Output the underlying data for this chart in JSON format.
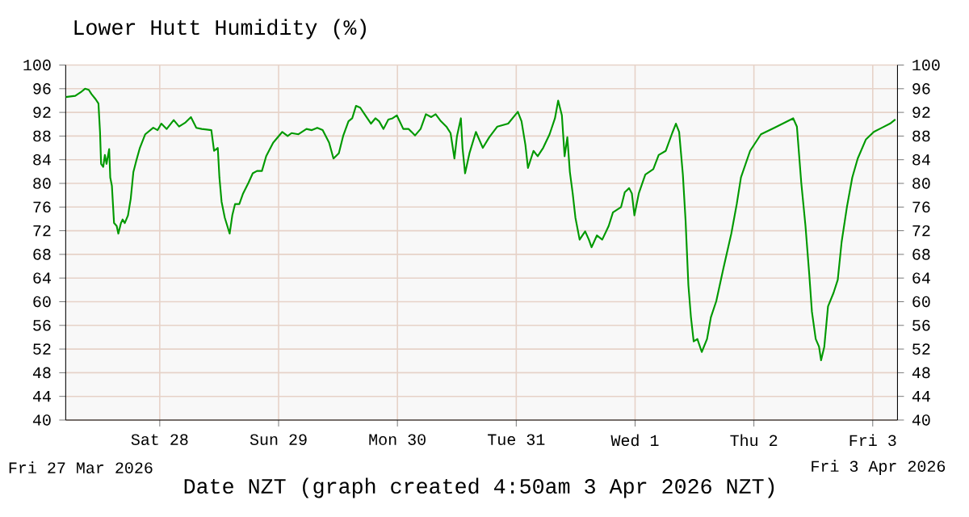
{
  "chart_data": {
    "type": "line",
    "title": "Lower Hutt Humidity (%)",
    "xlabel": "Date NZT (graph created 4:50am 3 Apr 2026 NZT)",
    "annotations": [
      "Fri 27 Mar 2026",
      "Fri 3 Apr 2026"
    ],
    "xlim": [
      "2026-03-27T05:00",
      "2026-04-03T05:00"
    ],
    "xticks": [
      {
        "value": "2026-03-28",
        "label": "Sat 28"
      },
      {
        "value": "2026-03-29",
        "label": "Sun 29"
      },
      {
        "value": "2026-03-30",
        "label": "Mon 30"
      },
      {
        "value": "2026-03-31",
        "label": "Tue 31"
      },
      {
        "value": "2026-04-01",
        "label": "Wed 1"
      },
      {
        "value": "2026-04-02",
        "label": "Thu 2"
      },
      {
        "value": "2026-04-03",
        "label": "Fri 3"
      }
    ],
    "ylim": [
      40,
      100
    ],
    "yticks": [
      40,
      44,
      48,
      52,
      56,
      60,
      64,
      68,
      72,
      76,
      80,
      84,
      88,
      92,
      96,
      100
    ],
    "y2lim": [
      40,
      100
    ],
    "y2ticks": [
      40,
      44,
      48,
      52,
      56,
      60,
      64,
      68,
      72,
      76,
      80,
      84,
      88,
      92,
      96,
      100
    ],
    "grid": true,
    "marker": "none",
    "line_style": "solid",
    "x": [
      "2026-03-27T05:00",
      "2026-03-27T06:56",
      "2026-03-27T08:02",
      "2026-03-27T08:54",
      "2026-03-27T09:40",
      "2026-03-27T10:12",
      "2026-03-27T11:04",
      "2026-03-27T11:37",
      "2026-03-27T11:56",
      "2026-03-27T12:09",
      "2026-03-27T12:35",
      "2026-03-27T12:55",
      "2026-03-27T13:15",
      "2026-03-27T13:47",
      "2026-03-27T14:00",
      "2026-03-27T14:20",
      "2026-03-27T14:46",
      "2026-03-27T15:18",
      "2026-03-27T15:38",
      "2026-03-27T16:10",
      "2026-03-27T16:30",
      "2026-03-27T16:56",
      "2026-03-27T17:35",
      "2026-03-27T18:08",
      "2026-03-27T18:40",
      "2026-03-27T19:13",
      "2026-03-27T19:59",
      "2026-03-27T21:04",
      "2026-03-27T22:41",
      "2026-03-27T23:34",
      "2026-03-28T00:19",
      "2026-03-28T01:24",
      "2026-03-28T02:49",
      "2026-03-28T03:54",
      "2026-03-28T05:12",
      "2026-03-28T06:18",
      "2026-03-28T07:23",
      "2026-03-28T08:28",
      "2026-03-28T10:25",
      "2026-03-28T10:58",
      "2026-03-28T11:43",
      "2026-03-28T12:03",
      "2026-03-28T12:29",
      "2026-03-28T13:08",
      "2026-03-28T14:07",
      "2026-03-28T14:39",
      "2026-03-28T15:12",
      "2026-03-28T16:04",
      "2026-03-28T16:50",
      "2026-03-28T17:55",
      "2026-03-28T18:47",
      "2026-03-28T19:39",
      "2026-03-28T20:38",
      "2026-03-28T21:30",
      "2026-03-28T22:55",
      "2026-03-28T23:08",
      "2026-03-29T00:45",
      "2026-03-29T01:50",
      "2026-03-29T02:37",
      "2026-03-29T04:01",
      "2026-03-29T05:38",
      "2026-03-29T06:43",
      "2026-03-29T07:49",
      "2026-03-29T08:54",
      "2026-03-29T10:12",
      "2026-03-29T11:05",
      "2026-03-29T12:10",
      "2026-03-29T13:02",
      "2026-03-29T14:07",
      "2026-03-29T14:52",
      "2026-03-29T15:38",
      "2026-03-29T16:29",
      "2026-03-29T17:22",
      "2026-03-29T18:40",
      "2026-03-29T19:33",
      "2026-03-29T20:18",
      "2026-03-29T21:11",
      "2026-03-29T22:10",
      "2026-03-29T23:01",
      "2026-03-29T23:53",
      "2026-03-30T01:11",
      "2026-03-30T02:16",
      "2026-03-30T03:34",
      "2026-03-30T04:41",
      "2026-03-30T05:45",
      "2026-03-30T06:50",
      "2026-03-30T07:43",
      "2026-03-30T08:47",
      "2026-03-30T09:53",
      "2026-03-30T10:44",
      "2026-03-30T11:31",
      "2026-03-30T12:02",
      "2026-03-30T12:49",
      "2026-03-30T13:09",
      "2026-03-30T13:40",
      "2026-03-30T14:33",
      "2026-03-30T15:51",
      "2026-03-30T17:15",
      "2026-03-30T18:33",
      "2026-03-30T20:11",
      "2026-03-30T22:22",
      "2026-03-31T00:19",
      "2026-03-31T01:04",
      "2026-03-31T01:51",
      "2026-03-31T02:22",
      "2026-03-31T03:29",
      "2026-03-31T04:20",
      "2026-03-31T05:26",
      "2026-03-31T06:44",
      "2026-03-31T07:49",
      "2026-03-31T08:28",
      "2026-03-31T09:13",
      "2026-03-31T09:46",
      "2026-03-31T10:19",
      "2026-03-31T10:50",
      "2026-03-31T11:24",
      "2026-03-31T11:57",
      "2026-03-31T12:48",
      "2026-03-31T13:55",
      "2026-03-31T14:40",
      "2026-03-31T15:13",
      "2026-03-31T16:17",
      "2026-03-31T17:22",
      "2026-03-31T18:40",
      "2026-03-31T19:32",
      "2026-03-31T21:10",
      "2026-03-31T21:55",
      "2026-03-31T22:48",
      "2026-03-31T23:21",
      "2026-03-31T23:52",
      "2026-04-01T00:45",
      "2026-04-01T02:04",
      "2026-04-01T03:41",
      "2026-04-01T04:46",
      "2026-04-01T06:12",
      "2026-04-01T07:30",
      "2026-04-01T08:15",
      "2026-04-01T08:54",
      "2026-04-01T09:39",
      "2026-04-01T10:12",
      "2026-04-01T10:46",
      "2026-04-01T11:17",
      "2026-04-01T11:50",
      "2026-04-01T12:35",
      "2026-04-01T13:28",
      "2026-04-01T14:32",
      "2026-04-01T15:19",
      "2026-04-01T16:24",
      "2026-04-01T17:48",
      "2026-04-01T19:26",
      "2026-04-01T20:32",
      "2026-04-01T21:23",
      "2026-04-01T23:14",
      "2026-04-02T01:25",
      "2026-04-02T04:07",
      "2026-04-02T06:19",
      "2026-04-02T07:56",
      "2026-04-02T08:41",
      "2026-04-02T09:34",
      "2026-04-02T10:25",
      "2026-04-02T11:11",
      "2026-04-02T11:43",
      "2026-04-02T12:29",
      "2026-04-02T13:09",
      "2026-04-02T13:34",
      "2026-04-02T14:13",
      "2026-04-02T14:58",
      "2026-04-02T16:05",
      "2026-04-02T16:56",
      "2026-04-02T17:43",
      "2026-04-02T18:47",
      "2026-04-02T19:52",
      "2026-04-02T20:58",
      "2026-04-02T22:36",
      "2026-04-03T00:13",
      "2026-04-03T01:51",
      "2026-04-03T03:29",
      "2026-04-03T04:34"
    ],
    "series": [
      {
        "color": "#009900",
        "values": [
          94.6,
          94.8,
          95.4,
          96.0,
          95.8,
          95.1,
          94.2,
          93.5,
          88.7,
          83.3,
          82.8,
          84.8,
          83.3,
          85.8,
          81.0,
          79.6,
          73.3,
          72.8,
          71.5,
          73.3,
          73.9,
          73.3,
          74.6,
          77.4,
          81.9,
          83.7,
          86.0,
          88.3,
          89.4,
          89.0,
          90.1,
          89.2,
          90.7,
          89.6,
          90.3,
          91.2,
          89.4,
          89.2,
          89.0,
          85.5,
          86.0,
          81.0,
          76.9,
          74.2,
          71.5,
          74.6,
          76.5,
          76.5,
          78.3,
          80.1,
          81.7,
          82.1,
          82.1,
          84.6,
          86.9,
          87.1,
          88.7,
          88.0,
          88.5,
          88.3,
          89.2,
          89.0,
          89.4,
          89.0,
          86.9,
          84.2,
          85.1,
          88.0,
          90.5,
          91.0,
          93.1,
          92.8,
          91.7,
          90.1,
          91.0,
          90.5,
          89.2,
          90.8,
          91.0,
          91.5,
          89.2,
          89.2,
          88.1,
          89.2,
          91.7,
          91.2,
          91.7,
          90.5,
          89.6,
          88.5,
          84.2,
          88.0,
          91.0,
          86.0,
          81.7,
          85.1,
          88.7,
          86.0,
          87.8,
          89.6,
          90.1,
          92.1,
          90.5,
          86.5,
          82.6,
          85.5,
          84.6,
          86.0,
          88.3,
          91.0,
          94.0,
          91.5,
          84.6,
          87.8,
          81.9,
          78.3,
          74.2,
          70.5,
          71.9,
          70.5,
          69.2,
          71.2,
          70.5,
          72.8,
          75.1,
          76.0,
          78.5,
          79.2,
          78.3,
          74.6,
          78.3,
          81.5,
          82.4,
          84.8,
          85.5,
          88.5,
          90.1,
          88.7,
          81.5,
          73.7,
          62.8,
          57.4,
          53.3,
          53.7,
          51.5,
          53.7,
          57.4,
          60.1,
          65.5,
          71.5,
          76.5,
          81.0,
          85.5,
          88.3,
          89.4,
          90.3,
          91.0,
          89.6,
          80.1,
          72.8,
          64.6,
          58.3,
          53.7,
          52.4,
          50.1,
          52.4,
          59.2,
          61.5,
          63.7,
          70.1,
          76.0,
          81.0,
          84.2,
          87.4,
          88.7,
          89.4,
          90.1,
          90.8
        ]
      }
    ]
  }
}
